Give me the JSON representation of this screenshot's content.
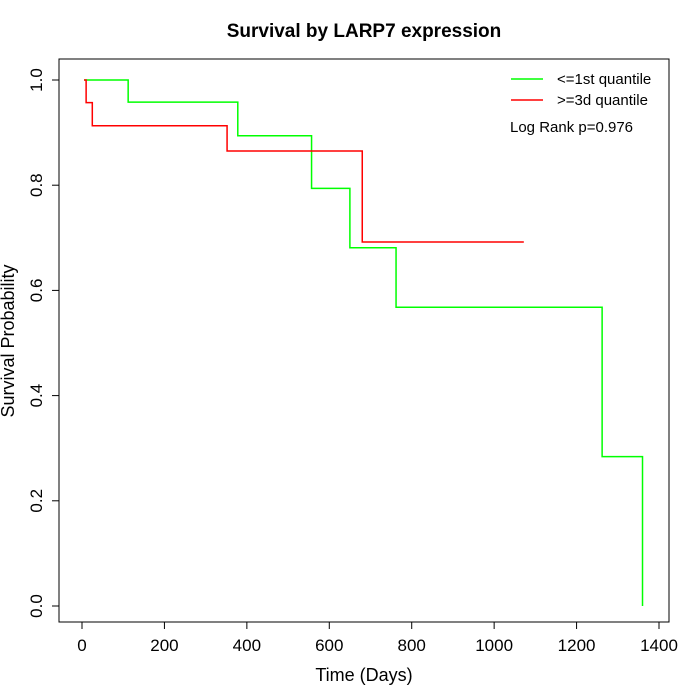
{
  "chart_data": {
    "type": "line",
    "step": true,
    "title": "Survival by LARP7 expression",
    "xlabel": "Time (Days)",
    "ylabel": "Survival Probability",
    "xlim": [
      0,
      1400
    ],
    "ylim": [
      0,
      1
    ],
    "x_ticks": [
      0,
      200,
      400,
      600,
      800,
      1000,
      1200,
      1400
    ],
    "y_ticks": [
      0.0,
      0.2,
      0.4,
      0.6,
      0.8,
      1.0
    ],
    "x_tick_labels": [
      "0",
      "200",
      "400",
      "600",
      "800",
      "1000",
      "1200",
      "1400"
    ],
    "y_tick_labels": [
      "0.0",
      "0.2",
      "0.4",
      "0.6",
      "0.8",
      "1.0"
    ],
    "grid": false,
    "legend_position": "top-right",
    "annotation": "Log Rank p=0.976",
    "series": [
      {
        "name": "<=1st quantile",
        "color": "#00ff00",
        "x": [
          5,
          112,
          378,
          557,
          650,
          762,
          1262,
          1360,
          1360
        ],
        "y": [
          1.0,
          0.958,
          0.894,
          0.794,
          0.681,
          0.568,
          0.284,
          0.284,
          0.0
        ]
      },
      {
        "name": ">=3d quantile",
        "color": "#ff0000",
        "x": [
          5,
          10,
          25,
          352,
          680,
          1072
        ],
        "y": [
          1.0,
          0.957,
          0.913,
          0.865,
          0.692,
          0.692
        ]
      }
    ]
  }
}
